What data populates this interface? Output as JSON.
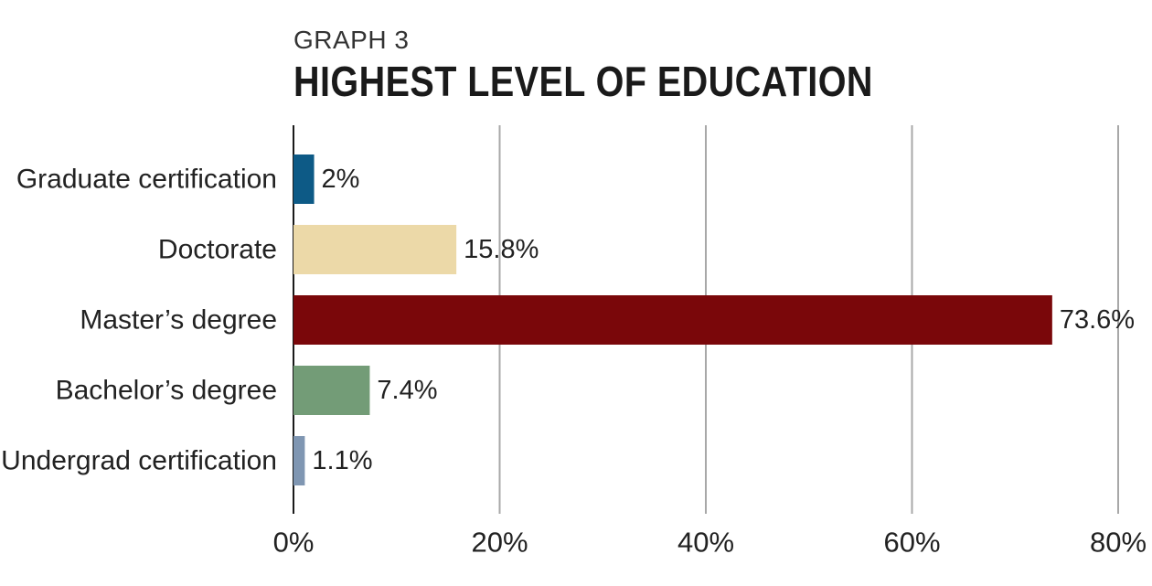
{
  "header": {
    "graph_number": "GRAPH 3",
    "title": "HIGHEST LEVEL OF EDUCATION"
  },
  "chart_data": {
    "type": "bar",
    "orientation": "horizontal",
    "title": "HIGHEST LEVEL OF EDUCATION",
    "subtitle": "GRAPH 3",
    "categories": [
      "Graduate certification",
      "Doctorate",
      "Master’s degree",
      "Bachelor’s degree",
      "Undergrad certification"
    ],
    "values": [
      2,
      15.8,
      73.6,
      7.4,
      1.1
    ],
    "value_labels": [
      "2%",
      "15.8%",
      "73.6%",
      "7.4%",
      "1.1%"
    ],
    "colors": [
      "#0d5a86",
      "#ecd9a8",
      "#7a070a",
      "#739c77",
      "#7f96b2"
    ],
    "xlim": [
      0,
      80
    ],
    "xticks": [
      0,
      20,
      40,
      60,
      80
    ],
    "xtick_labels": [
      "0%",
      "20%",
      "40%",
      "60%",
      "80%"
    ],
    "xlabel": "",
    "ylabel": "",
    "grid": true,
    "grid_color": "#a8a8a8"
  }
}
